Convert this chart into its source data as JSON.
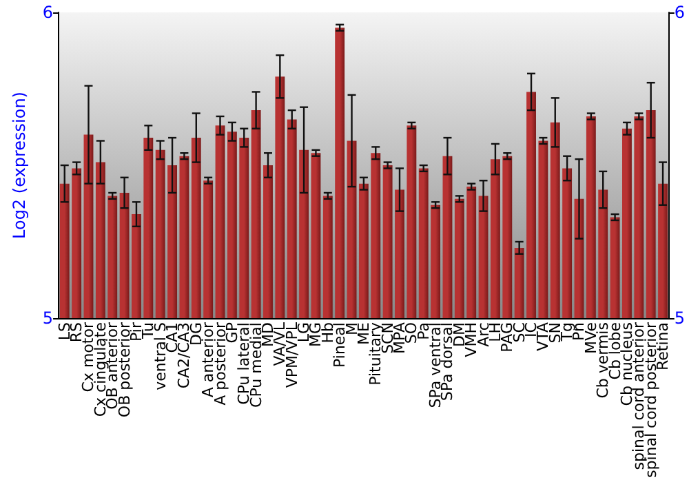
{
  "chart_data": {
    "type": "bar",
    "ylabel": "Log2 (expression)",
    "categories": [
      "LS",
      "RS",
      "Cx motor",
      "Cx cingulate",
      "OB anterior",
      "OB posterior",
      "Pir",
      "Tu",
      "ventral S",
      "CA1",
      "CA2/CA3",
      "DG",
      "A anterior",
      "A posterior",
      "GP",
      "CPu lateral",
      "CPu medial",
      "MD",
      "VA/VL",
      "VPM/VPL",
      "LG",
      "MG",
      "Hb",
      "Pineal",
      "M",
      "ME",
      "Pituitary",
      "SCN",
      "MPA",
      "SO",
      "Pa",
      "SPa ventral",
      "SPa dorsal",
      "DM",
      "VMH",
      "Arc",
      "LH",
      "PAG",
      "SC",
      "IC",
      "VTA",
      "SN",
      "Tg",
      "Pn",
      "MVe",
      "Cb vermis",
      "Cb lobe",
      "Cb nucleus",
      "spinal cord anterior",
      "spinal cord posterior",
      "Retina"
    ],
    "values": [
      5.44,
      5.49,
      5.6,
      5.51,
      5.4,
      5.41,
      5.34,
      5.59,
      5.55,
      5.5,
      5.53,
      5.59,
      5.45,
      5.63,
      5.61,
      5.59,
      5.68,
      5.5,
      5.79,
      5.65,
      5.55,
      5.54,
      5.4,
      5.95,
      5.58,
      5.44,
      5.54,
      5.5,
      5.42,
      5.63,
      5.49,
      5.37,
      5.53,
      5.39,
      5.43,
      5.4,
      5.52,
      5.53,
      5.23,
      5.74,
      5.58,
      5.64,
      5.49,
      5.39,
      5.66,
      5.42,
      5.33,
      5.62,
      5.66,
      5.68,
      5.44
    ],
    "errors": [
      0.06,
      0.02,
      0.16,
      0.07,
      0.01,
      0.05,
      0.04,
      0.04,
      0.03,
      0.09,
      0.01,
      0.08,
      0.01,
      0.03,
      0.03,
      0.03,
      0.06,
      0.04,
      0.07,
      0.03,
      0.14,
      0.01,
      0.01,
      0.01,
      0.15,
      0.02,
      0.02,
      0.01,
      0.07,
      0.01,
      0.01,
      0.01,
      0.06,
      0.01,
      0.01,
      0.05,
      0.05,
      0.01,
      0.02,
      0.06,
      0.01,
      0.08,
      0.04,
      0.13,
      0.01,
      0.06,
      0.01,
      0.02,
      0.01,
      0.09,
      0.07
    ],
    "color": "#b83232",
    "ylim": [
      5,
      6
    ],
    "yticks": [
      5,
      6
    ],
    "y2lim": [
      5,
      6
    ],
    "y2ticks": [
      5,
      6
    ],
    "grid": false
  }
}
